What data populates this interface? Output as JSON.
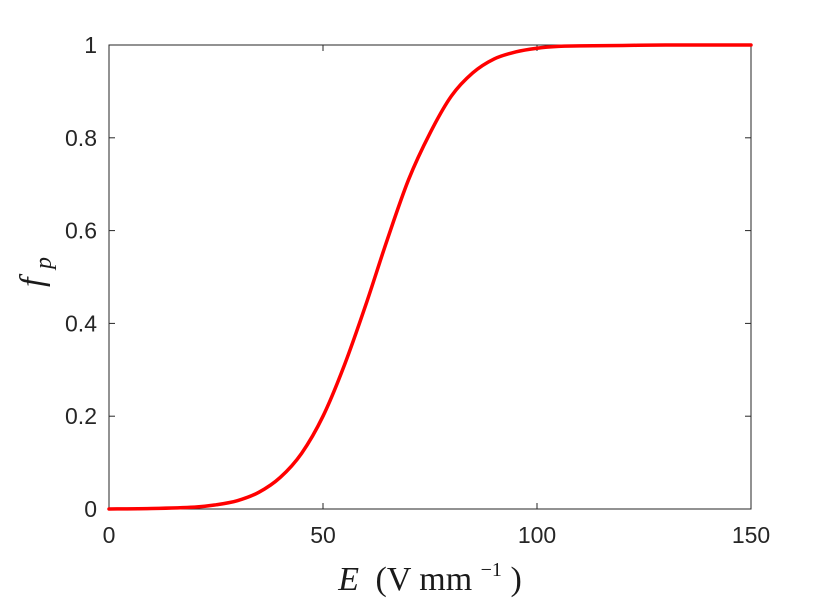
{
  "chart_data": {
    "type": "line",
    "xlabel": {
      "symbol": "E",
      "unit_prefix": "(V mm",
      "unit_exponent": "−1",
      "unit_suffix": ")"
    },
    "ylabel": {
      "symbol": "f",
      "subscript": "p"
    },
    "xlim": [
      0,
      150
    ],
    "ylim": [
      0,
      1
    ],
    "xticks": [
      0,
      50,
      100,
      150
    ],
    "xtick_labels": [
      "0",
      "50",
      "100",
      "150"
    ],
    "yticks": [
      0,
      0.2,
      0.4,
      0.6,
      0.8,
      1
    ],
    "ytick_labels": [
      "0",
      "0.2",
      "0.4",
      "0.6",
      "0.8",
      "1"
    ],
    "grid": false,
    "series": [
      {
        "color": "#ff0000",
        "x": [
          0,
          10,
          20,
          25,
          30,
          35,
          40,
          45,
          50,
          55,
          60,
          65,
          70,
          75,
          80,
          85,
          90,
          95,
          100,
          105,
          110,
          120,
          130,
          140,
          150
        ],
        "y": [
          0.0,
          0.001,
          0.004,
          0.009,
          0.018,
          0.036,
          0.068,
          0.12,
          0.2,
          0.31,
          0.44,
          0.58,
          0.71,
          0.81,
          0.89,
          0.94,
          0.97,
          0.985,
          0.993,
          0.997,
          0.998,
          0.999,
          1.0,
          1.0,
          1.0
        ]
      }
    ]
  }
}
